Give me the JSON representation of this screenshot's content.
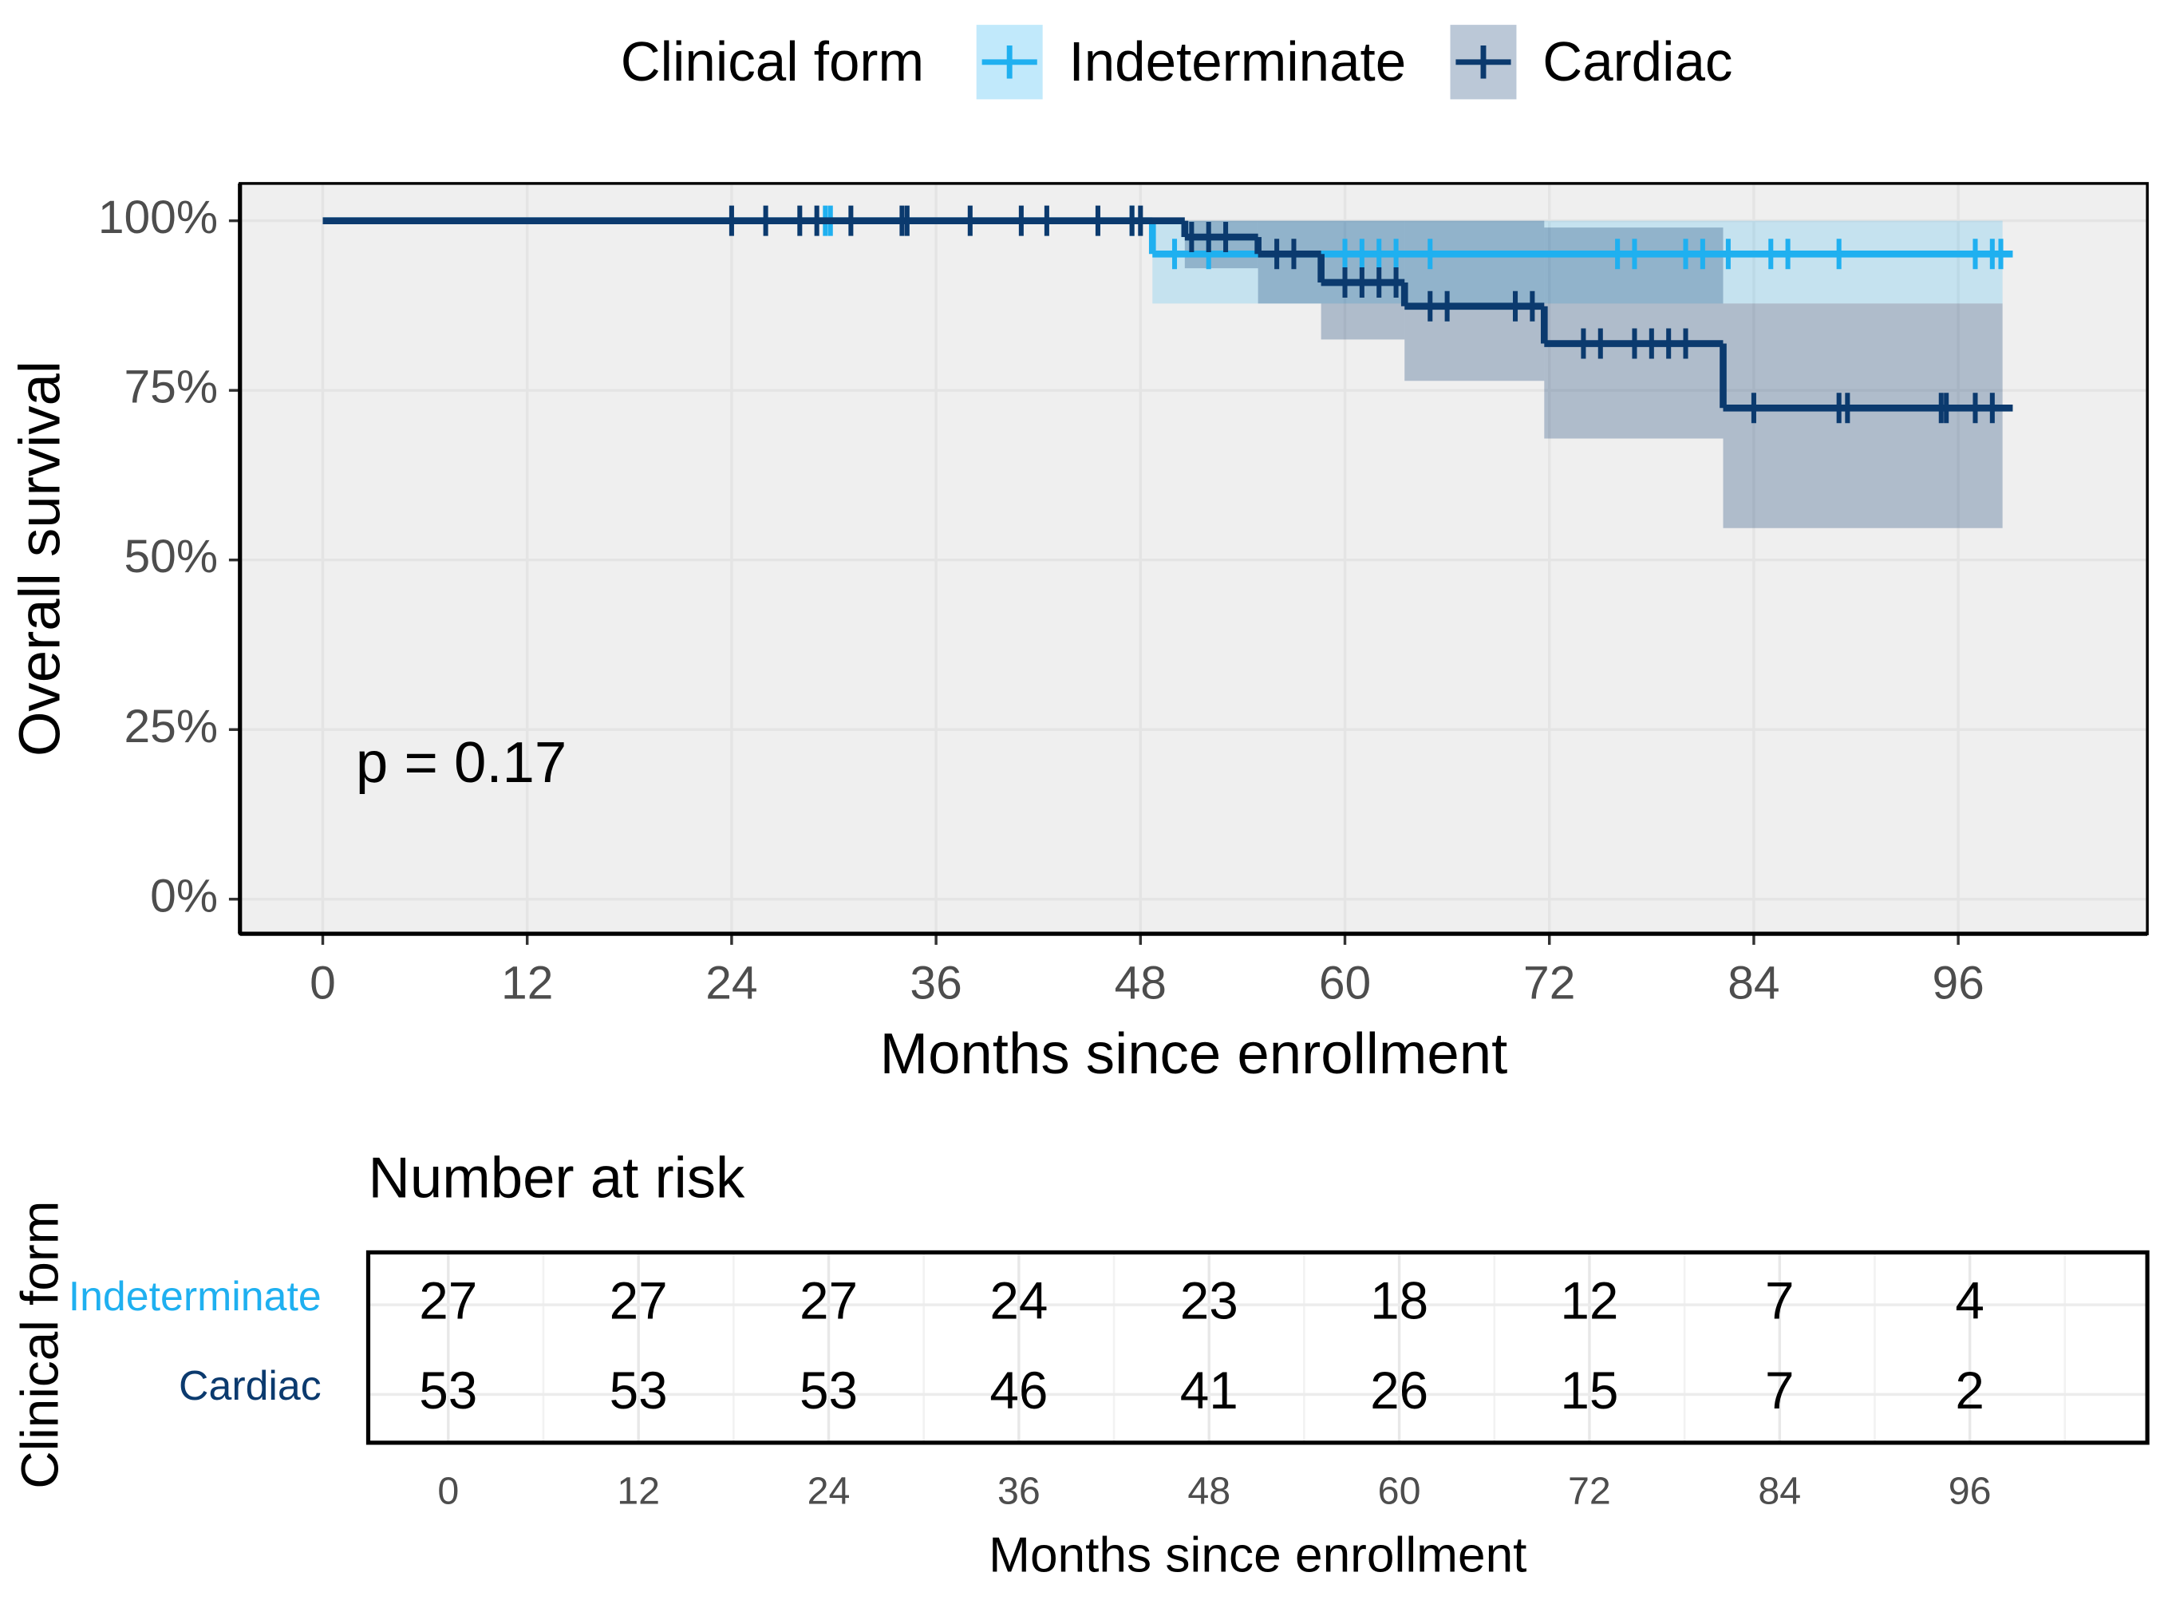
{
  "chart_data": [
    {
      "type": "survival",
      "legend_title": "Clinical form",
      "xlabel": "Months since enrollment",
      "ylabel": "Overall survival",
      "annotation": "p = 0.17",
      "xlim": [
        -4.86,
        107.1
      ],
      "ylim": [
        -5.1,
        105.5
      ],
      "xticks": [
        0,
        12,
        24,
        36,
        48,
        60,
        72,
        84,
        96
      ],
      "yticks": [
        {
          "value": 0,
          "label": "0%"
        },
        {
          "value": 25,
          "label": "25%"
        },
        {
          "value": 50,
          "label": "50%"
        },
        {
          "value": 75,
          "label": "75%"
        },
        {
          "value": 100,
          "label": "100%"
        }
      ],
      "grid": true,
      "band_end": 98.6,
      "series": [
        {
          "name": "Indeterminate",
          "color": "#1fb0f0",
          "x": [
            0,
            48.7,
            99.2
          ],
          "values": [
            100,
            95.1,
            95.1
          ],
          "lower": [
            null,
            87.8,
            null
          ],
          "upper": [
            null,
            100,
            null
          ],
          "censored": [
            29.5,
            29.8,
            47.5,
            50,
            52,
            60,
            61,
            62,
            63,
            65,
            76,
            77,
            80,
            81,
            82.5,
            85,
            86,
            89,
            97,
            98,
            98.5
          ]
        },
        {
          "name": "Cardiac",
          "color": "#0b3a6e",
          "x": [
            0,
            50.6,
            54.9,
            58.6,
            63.5,
            71.7,
            82.2,
            99.2
          ],
          "values": [
            100,
            97.6,
            95.1,
            90.9,
            87.4,
            81.9,
            72.4,
            72.4
          ],
          "lower": [
            null,
            93,
            87.8,
            82.5,
            76.4,
            67.9,
            54.7,
            null
          ],
          "upper": [
            null,
            100,
            100,
            100,
            100,
            99,
            87.8,
            null
          ],
          "censored": [
            24,
            26,
            28,
            29,
            31,
            34,
            34.3,
            38,
            41,
            42.5,
            45.5,
            47.5,
            48,
            51,
            52,
            53,
            56,
            57,
            60,
            61,
            62,
            63,
            65,
            66,
            70,
            71,
            74,
            75,
            77,
            78,
            79,
            80,
            84,
            89,
            89.5,
            95,
            95.3,
            97,
            98
          ]
        }
      ]
    },
    {
      "type": "risk_table",
      "title": "Number at risk",
      "xlabel": "Months since enrollment",
      "ylabel": "Clinical form",
      "xlim": [
        -5.05,
        107.2
      ],
      "xticks": [
        0,
        12,
        24,
        36,
        48,
        60,
        72,
        84,
        96
      ],
      "series": [
        {
          "name": "Indeterminate",
          "color": "#1fb0f0",
          "values": [
            27,
            27,
            27,
            24,
            23,
            18,
            12,
            7,
            4
          ]
        },
        {
          "name": "Cardiac",
          "color": "#0b3a6e",
          "values": [
            53,
            53,
            53,
            46,
            41,
            26,
            15,
            7,
            2
          ]
        }
      ]
    }
  ]
}
